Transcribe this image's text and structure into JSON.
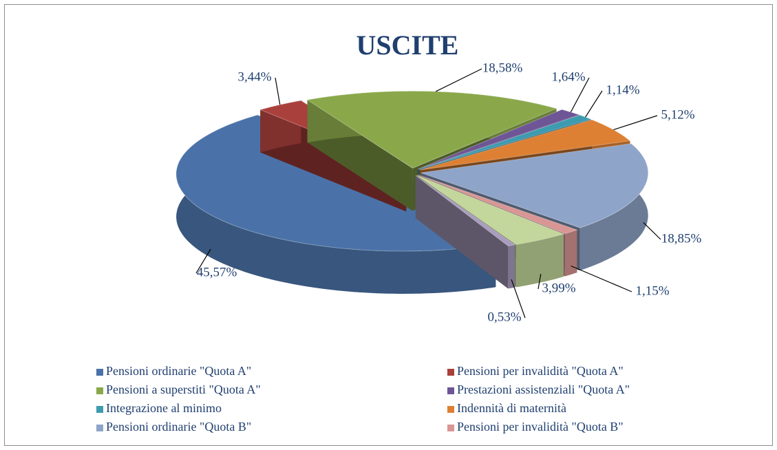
{
  "chart_data": {
    "type": "pie",
    "title": "USCITE",
    "categories": [
      "Pensioni ordinarie \"Quota A\"",
      "Pensioni per invalidità \"Quota A\"",
      "Pensioni a superstiti \"Quota A\"",
      "Prestazioni assistenziali \"Quota A\"",
      "Integrazione al minimo",
      "Indennità di maternità",
      "Pensioni ordinarie \"Quota B\"",
      "Pensioni per invalidità \"Quota B\"",
      null,
      null
    ],
    "values": [
      45.57,
      3.44,
      18.58,
      1.64,
      1.14,
      5.12,
      18.85,
      1.15,
      3.99,
      0.53
    ],
    "value_labels": [
      "45,57%",
      "3,44%",
      "18,58%",
      "1,64%",
      "1,14%",
      "5,12%",
      "18,85%",
      "1,15%",
      "3,99%",
      "0,53%"
    ],
    "colors": [
      "#4a72a8",
      "#aa403c",
      "#8aa84a",
      "#6e5596",
      "#3d9bb0",
      "#dd8033",
      "#8ea4c8",
      "#d99694",
      "#c3d69b",
      "#a99cbf"
    ],
    "legend": "bottom"
  }
}
